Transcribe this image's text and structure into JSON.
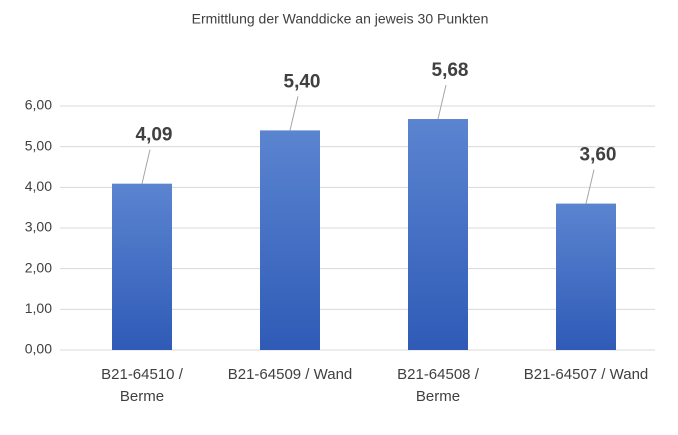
{
  "chart_data": {
    "type": "bar",
    "title": "Ermittlung der Wanddicke an jeweis 30 Punkten",
    "categories": [
      [
        "B21-64510 /",
        "Berme"
      ],
      [
        "B21-64509 / Wand"
      ],
      [
        "B21-64508 /",
        "Berme"
      ],
      [
        "B21-64507 / Wand"
      ]
    ],
    "values": [
      4.09,
      5.4,
      5.68,
      3.6
    ],
    "value_labels": [
      "4,09",
      "5,40",
      "5,68",
      "3,60"
    ],
    "color": "#4472c4",
    "ylim": [
      0,
      6
    ],
    "yticks": [
      {
        "value": 0,
        "label": "0,00"
      },
      {
        "value": 1,
        "label": "1,00"
      },
      {
        "value": 2,
        "label": "2,00"
      },
      {
        "value": 3,
        "label": "3,00"
      },
      {
        "value": 4,
        "label": "4,00"
      },
      {
        "value": 5,
        "label": "5,00"
      },
      {
        "value": 6,
        "label": "6,00"
      }
    ],
    "grid": true
  }
}
